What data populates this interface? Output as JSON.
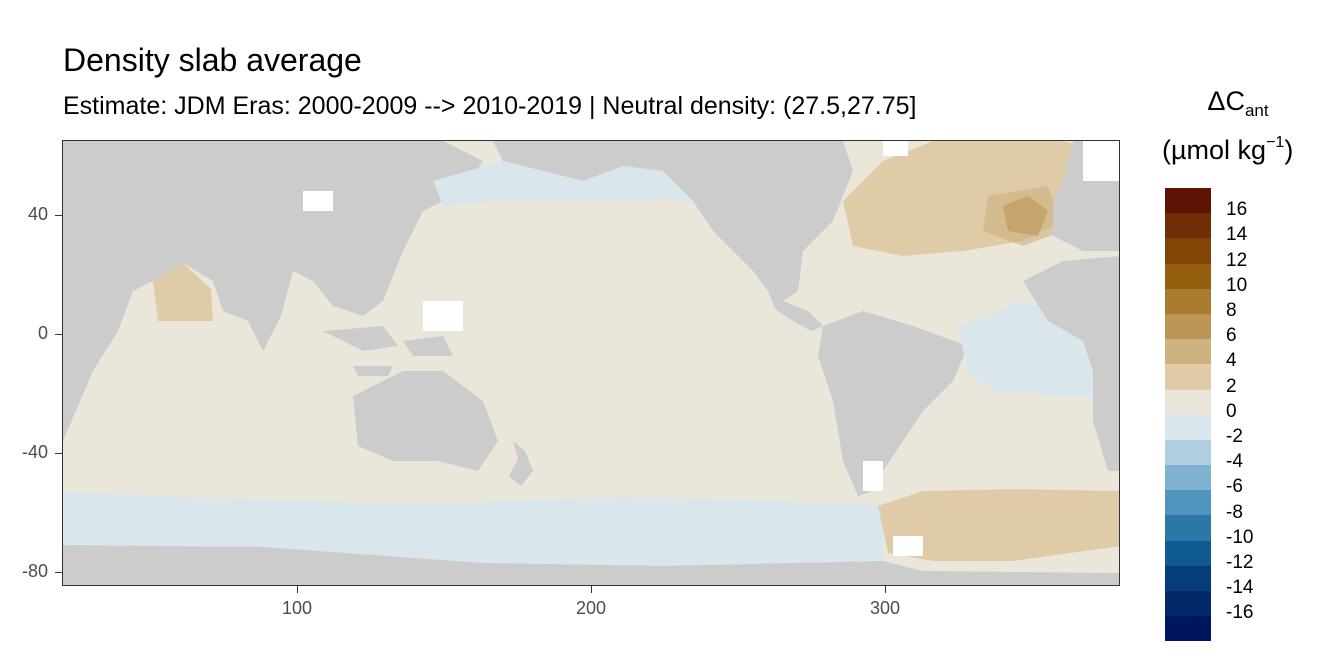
{
  "title": "Density slab average",
  "subtitle": "Estimate: JDM Eras: 2000-2009 --> 2010-2019 | Neutral density: (27.5,27.75]",
  "legend": {
    "title_main": "ΔC",
    "title_sub": "ant",
    "unit_prefix": "(µmol kg",
    "unit_exp": "−1",
    "unit_suffix": ")",
    "levels": [
      {
        "label": "16",
        "color": "#5e1404"
      },
      {
        "label": "14",
        "color": "#6f2e05"
      },
      {
        "label": "12",
        "color": "#824506"
      },
      {
        "label": "10",
        "color": "#94600f"
      },
      {
        "label": "8",
        "color": "#a97b2d"
      },
      {
        "label": "6",
        "color": "#bb9553"
      },
      {
        "label": "4",
        "color": "#cdb17e"
      },
      {
        "label": "2",
        "color": "#dfcba7"
      },
      {
        "label": "0",
        "color": "#ebe6da"
      },
      {
        "label": "-2",
        "color": "#d9e6ec"
      },
      {
        "label": "-4",
        "color": "#b0cee0"
      },
      {
        "label": "-6",
        "color": "#7fb1d1"
      },
      {
        "label": "-8",
        "color": "#4f95c0"
      },
      {
        "label": "-10",
        "color": "#2a77a8"
      },
      {
        "label": "-12",
        "color": "#0f5a92"
      },
      {
        "label": "-14",
        "color": "#053d7a"
      },
      {
        "label": "-16",
        "color": "#02286a"
      },
      {
        "label": "",
        "color": "#001560"
      }
    ]
  },
  "axes": {
    "x_ticks": [
      "100",
      "200",
      "300"
    ],
    "y_ticks": [
      "40",
      "0",
      "-40",
      "-80"
    ],
    "xlim": [
      20,
      380
    ],
    "ylim": [
      -85,
      65
    ]
  },
  "colors": {
    "land": "#cccccc",
    "ocean_0_2": "#ebe6da",
    "ocean_2_4": "#dfcba7",
    "ocean_4_6": "#cdb17e",
    "ocean_neg": "#d9e6ec",
    "no_data": "#ffffff"
  }
}
